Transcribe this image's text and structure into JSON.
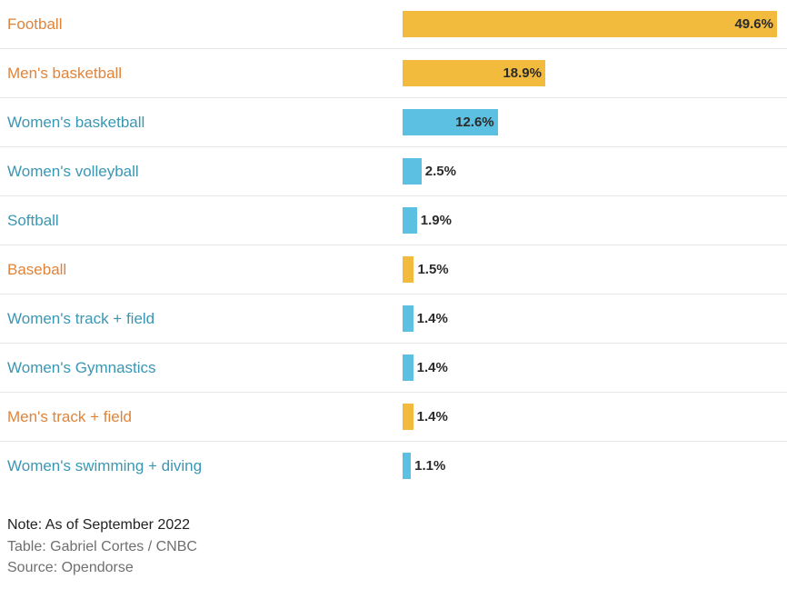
{
  "chart_data": {
    "type": "bar",
    "orientation": "horizontal",
    "categories": [
      "Football",
      "Men's basketball",
      "Women's basketball",
      "Women's volleyball",
      "Softball",
      "Baseball",
      "Women's track + field",
      "Women's Gymnastics",
      "Men's track + field",
      "Women's swimming + diving"
    ],
    "values": [
      49.6,
      18.9,
      12.6,
      2.5,
      1.9,
      1.5,
      1.4,
      1.4,
      1.4,
      1.1
    ],
    "value_labels": [
      "49.6%",
      "18.9%",
      "12.6%",
      "2.5%",
      "1.9%",
      "1.5%",
      "1.4%",
      "1.4%",
      "1.4%",
      "1.1%"
    ],
    "groups": [
      "men",
      "men",
      "women",
      "women",
      "women",
      "men",
      "women",
      "women",
      "men",
      "women"
    ],
    "xlim": [
      0,
      49.6
    ],
    "grid": false,
    "legend": "none"
  },
  "colors": {
    "men_label": "#e0843a",
    "men_bar": "#f2bb3d",
    "women_label": "#3a97b4",
    "women_bar": "#5bc0e2"
  },
  "footer": {
    "note": "Note: As of September 2022",
    "table_credit": "Table: Gabriel Cortes / CNBC",
    "source": "Source: Opendorse"
  }
}
